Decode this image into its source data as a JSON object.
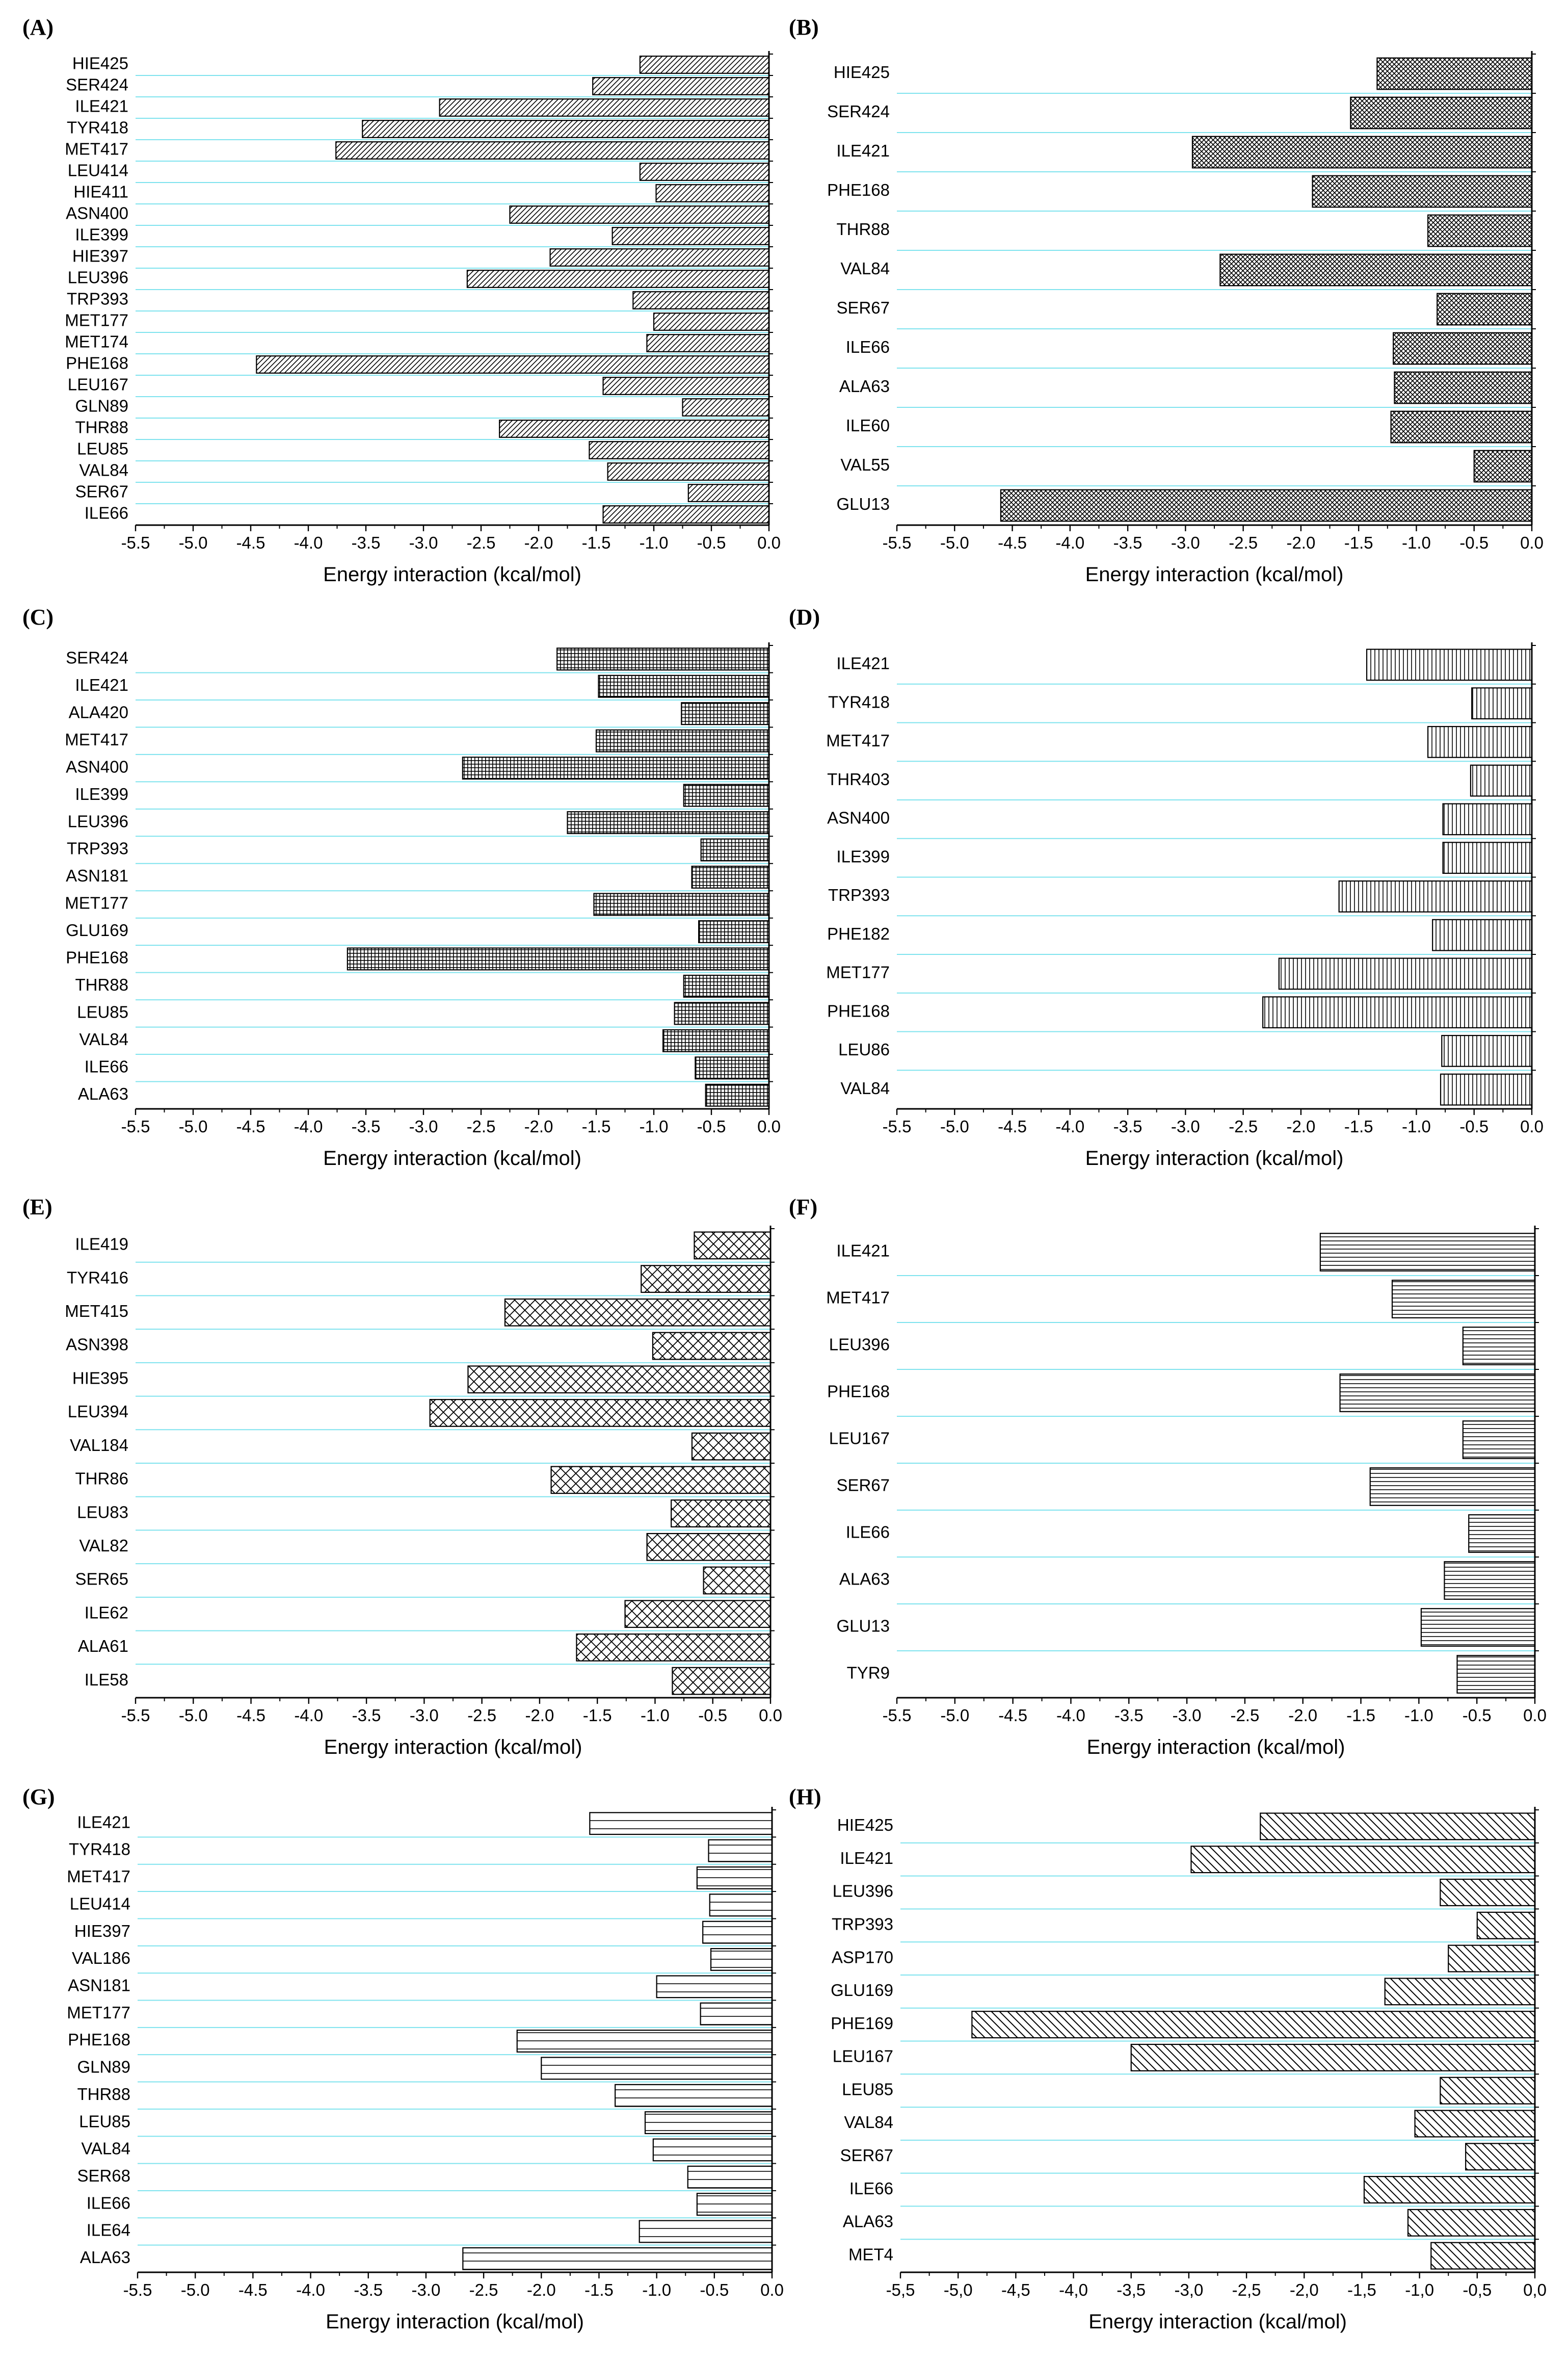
{
  "chart_data": [
    {
      "type": "bar",
      "orientation": "horizontal",
      "panel_label": "(A)",
      "pattern": "diag-fwd",
      "xlabel": "Energy interaction (kcal/mol)",
      "xlim": [
        -5.5,
        0.0
      ],
      "xticks": [
        "-5.5",
        "-5.0",
        "-4.5",
        "-4.0",
        "-3.5",
        "-3.0",
        "-2.5",
        "-2.0",
        "-1.5",
        "-1.0",
        "-0.5",
        "0.0"
      ],
      "categories": [
        "HIE425",
        "SER424",
        "ILE421",
        "TYR418",
        "MET417",
        "LEU414",
        "HIE411",
        "ASN400",
        "ILE399",
        "HIE397",
        "LEU396",
        "TRP393",
        "MET177",
        "MET174",
        "PHE168",
        "LEU167",
        "GLN89",
        "THR88",
        "LEU85",
        "VAL84",
        "SER67",
        "ILE66"
      ],
      "values": [
        -1.12,
        -1.53,
        -2.86,
        -3.53,
        -3.76,
        -1.12,
        -0.98,
        -2.25,
        -1.36,
        -1.9,
        -2.62,
        -1.18,
        -1.0,
        -1.06,
        -4.45,
        -1.44,
        -0.75,
        -2.34,
        -1.56,
        -1.4,
        -0.7,
        -1.44
      ]
    },
    {
      "type": "bar",
      "orientation": "horizontal",
      "panel_label": "(B)",
      "pattern": "crosshatch-dense",
      "xlabel": "Energy interaction (kcal/mol)",
      "xlim": [
        -5.5,
        0.0
      ],
      "xticks": [
        "-5.5",
        "-5.0",
        "-4.5",
        "-4.0",
        "-3.5",
        "-3.0",
        "-2.5",
        "-2.0",
        "-1.5",
        "-1.0",
        "-0.5",
        "0.0"
      ],
      "categories": [
        "HIE425",
        "SER424",
        "ILE421",
        "PHE168",
        "THR88",
        "VAL84",
        "SER67",
        "ILE66",
        "ALA63",
        "ILE60",
        "VAL55",
        "GLU13"
      ],
      "values": [
        -1.34,
        -1.57,
        -2.94,
        -1.9,
        -0.9,
        -2.7,
        -0.82,
        -1.2,
        -1.19,
        -1.22,
        -0.5,
        -4.6
      ]
    },
    {
      "type": "bar",
      "orientation": "horizontal",
      "panel_label": "(C)",
      "pattern": "grid",
      "xlabel": "Energy interaction (kcal/mol)",
      "xlim": [
        -5.5,
        0.0
      ],
      "xticks": [
        "-5.5",
        "-5.0",
        "-4.5",
        "-4.0",
        "-3.5",
        "-3.0",
        "-2.5",
        "-2.0",
        "-1.5",
        "-1.0",
        "-0.5",
        "0.0"
      ],
      "categories": [
        "SER424",
        "ILE421",
        "ALA420",
        "MET417",
        "ASN400",
        "ILE399",
        "LEU396",
        "TRP393",
        "ASN181",
        "MET177",
        "GLU169",
        "PHE168",
        "THR88",
        "LEU85",
        "VAL84",
        "ILE66",
        "ALA63"
      ],
      "values": [
        -1.84,
        -1.48,
        -0.76,
        -1.5,
        -2.66,
        -0.74,
        -1.75,
        -0.59,
        -0.67,
        -1.52,
        -0.61,
        -3.66,
        -0.74,
        -0.82,
        -0.92,
        -0.64,
        -0.55
      ]
    },
    {
      "type": "bar",
      "orientation": "horizontal",
      "panel_label": "(D)",
      "pattern": "vertical",
      "xlabel": "Energy interaction (kcal/mol)",
      "xlim": [
        -5.5,
        0.0
      ],
      "xticks": [
        "-5.5",
        "-5.0",
        "-4.5",
        "-4.0",
        "-3.5",
        "-3.0",
        "-2.5",
        "-2.0",
        "-1.5",
        "-1.0",
        "-0.5",
        "0.0"
      ],
      "categories": [
        "ILE421",
        "TYR418",
        "MET417",
        "THR403",
        "ASN400",
        "ILE399",
        "TRP393",
        "PHE182",
        "MET177",
        "PHE168",
        "LEU86",
        "VAL84"
      ],
      "values": [
        -1.43,
        -0.52,
        -0.9,
        -0.53,
        -0.77,
        -0.77,
        -1.67,
        -0.86,
        -2.19,
        -2.33,
        -0.78,
        -0.79
      ]
    },
    {
      "type": "bar",
      "orientation": "horizontal",
      "panel_label": "(E)",
      "pattern": "crosshatch-diamond",
      "xlabel": "Energy interaction (kcal/mol)",
      "xlim": [
        -5.5,
        0.0
      ],
      "xticks": [
        "-5.5",
        "-5.0",
        "-4.5",
        "-4.0",
        "-3.5",
        "-3.0",
        "-2.5",
        "-2.0",
        "-1.5",
        "-1.0",
        "-0.5",
        "0.0"
      ],
      "categories": [
        "ILE419",
        "TYR416",
        "MET415",
        "ASN398",
        "HIE395",
        "LEU394",
        "VAL184",
        "THR86",
        "LEU83",
        "VAL82",
        "SER65",
        "ILE62",
        "ALA61",
        "ILE58"
      ],
      "values": [
        -0.66,
        -1.12,
        -2.3,
        -1.02,
        -2.62,
        -2.95,
        -0.68,
        -1.9,
        -0.86,
        -1.07,
        -0.58,
        -1.26,
        -1.68,
        -0.85
      ]
    },
    {
      "type": "bar",
      "orientation": "horizontal",
      "panel_label": "(F)",
      "pattern": "horizontal",
      "xlabel": "Energy interaction (kcal/mol)",
      "xlim": [
        -5.5,
        0.0
      ],
      "xticks": [
        "-5.5",
        "-5.0",
        "-4.5",
        "-4.0",
        "-3.5",
        "-3.0",
        "-2.5",
        "-2.0",
        "-1.5",
        "-1.0",
        "-0.5",
        "0.0"
      ],
      "categories": [
        "ILE421",
        "MET417",
        "LEU396",
        "PHE168",
        "LEU167",
        "SER67",
        "ILE66",
        "ALA63",
        "GLU13",
        "TYR9"
      ],
      "values": [
        -1.85,
        -1.23,
        -0.62,
        -1.68,
        -0.62,
        -1.42,
        -0.57,
        -0.78,
        -0.98,
        -0.67
      ]
    },
    {
      "type": "bar",
      "orientation": "horizontal",
      "panel_label": "(G)",
      "pattern": "horizontal-sparse",
      "xlabel": "Energy interaction (kcal/mol)",
      "xlim": [
        -5.5,
        0.0
      ],
      "xticks": [
        "-5.5",
        "-5.0",
        "-4.5",
        "-4.0",
        "-3.5",
        "-3.0",
        "-2.5",
        "-2.0",
        "-1.5",
        "-1.0",
        "-0.5",
        "0.0"
      ],
      "categories": [
        "ILE421",
        "TYR418",
        "MET417",
        "LEU414",
        "HIE397",
        "VAL186",
        "ASN181",
        "MET177",
        "PHE168",
        "GLN89",
        "THR88",
        "LEU85",
        "VAL84",
        "SER68",
        "ILE66",
        "ILE64",
        "ALA63"
      ],
      "values": [
        -1.58,
        -0.55,
        -0.65,
        -0.54,
        -0.6,
        -0.53,
        -1.0,
        -0.62,
        -2.21,
        -2.0,
        -1.36,
        -1.1,
        -1.03,
        -0.73,
        -0.65,
        -1.15,
        -2.68
      ]
    },
    {
      "type": "bar",
      "orientation": "horizontal",
      "panel_label": "(H)",
      "pattern": "diag-back",
      "xlabel": "Energy interaction (kcal/mol)",
      "xlim": [
        -5.5,
        0.0
      ],
      "xticks": [
        "-5,5",
        "-5,0",
        "-4,5",
        "-4,0",
        "-3,5",
        "-3,0",
        "-2,5",
        "-2,0",
        "-1,5",
        "-1,0",
        "-0,5",
        "0,0"
      ],
      "categories": [
        "HIE425",
        "ILE421",
        "LEU396",
        "TRP393",
        "ASP170",
        "GLU169",
        "PHE169",
        "LEU167",
        "LEU85",
        "VAL84",
        "SER67",
        "ILE66",
        "ALA63",
        "MET4"
      ],
      "values": [
        -2.38,
        -2.98,
        -0.82,
        -0.5,
        -0.75,
        -1.3,
        -4.88,
        -3.5,
        -0.82,
        -1.04,
        -0.6,
        -1.48,
        -1.1,
        -0.9
      ]
    }
  ]
}
